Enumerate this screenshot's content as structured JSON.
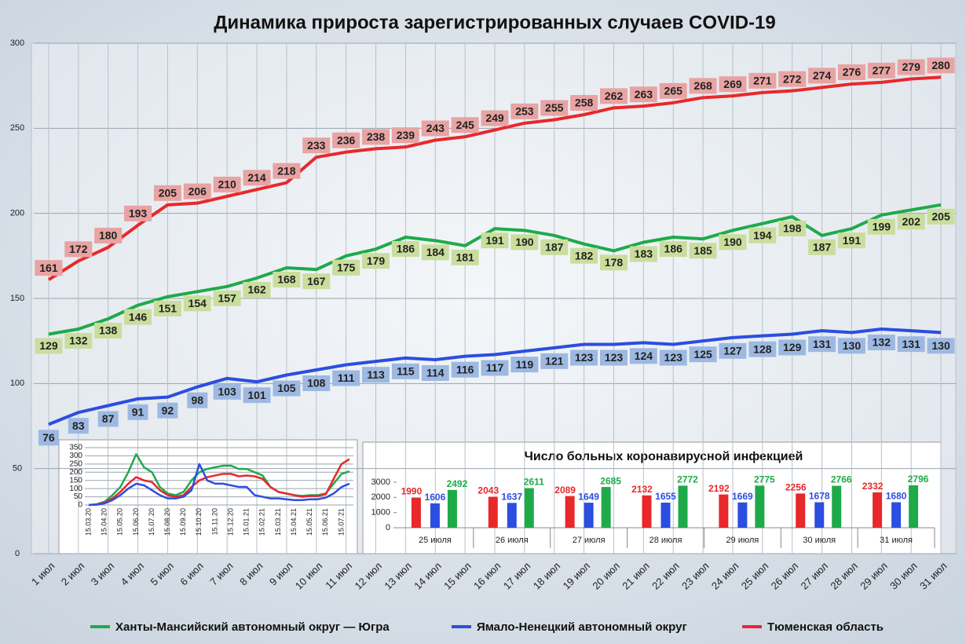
{
  "chart_data": [
    {
      "type": "line",
      "title": "Динамика прироста зарегистрированных случаев COVID-19",
      "categories": [
        "1 июл",
        "2 июл",
        "3 июл",
        "4 июл",
        "5 июл",
        "6 июл",
        "7 июл",
        "8 июл",
        "9 июл",
        "10 июл",
        "11 июл",
        "12 июл",
        "13 июл",
        "14 июл",
        "15 июл",
        "16 июл",
        "17 июл",
        "18 июл",
        "19 июл",
        "20 июл",
        "21 июл",
        "22 июл",
        "23 июл",
        "24 июл",
        "25 июл",
        "26 июл",
        "27 июл",
        "28 июл",
        "29 июл",
        "30 июл",
        "31 июл"
      ],
      "series": [
        {
          "name": "Ханты-Мансийский автономный округ — Югра",
          "color": "#1faa4a",
          "label_color": "#c9de9c",
          "values": [
            129,
            132,
            138,
            146,
            151,
            154,
            157,
            162,
            168,
            167,
            175,
            179,
            186,
            184,
            181,
            191,
            190,
            187,
            182,
            178,
            183,
            186,
            185,
            190,
            194,
            198,
            187,
            191,
            199,
            202,
            205
          ]
        },
        {
          "name": "Ямало-Ненецкий автономный округ",
          "color": "#2b4ee0",
          "label_color": "#9db9e2",
          "values": [
            76,
            83,
            87,
            91,
            92,
            98,
            103,
            101,
            105,
            108,
            111,
            113,
            115,
            114,
            116,
            117,
            119,
            121,
            123,
            123,
            124,
            123,
            125,
            127,
            128,
            129,
            131,
            130,
            132,
            131,
            130
          ]
        },
        {
          "name": "Тюменская область",
          "color": "#e8282a",
          "label_color": "#e8a3a3",
          "values": [
            161,
            172,
            180,
            193,
            205,
            206,
            210,
            214,
            218,
            233,
            236,
            238,
            239,
            243,
            245,
            249,
            253,
            255,
            258,
            262,
            263,
            265,
            268,
            269,
            271,
            272,
            274,
            276,
            277,
            279,
            280
          ]
        }
      ],
      "ylim": [
        0,
        300
      ],
      "yticks": [
        0,
        50,
        100,
        150,
        200,
        250,
        300
      ],
      "grid": true,
      "data_labels": true,
      "legend": "bottom"
    },
    {
      "type": "line",
      "categories": [
        "15.03.20",
        null,
        "15.04.20",
        null,
        "15.05.20",
        null,
        "15.06.20",
        null,
        "15.07.20",
        null,
        "15.08.20",
        null,
        "15.09.20",
        null,
        "15.10.20",
        null,
        "15.11.20",
        null,
        "15.12.20",
        null,
        "15.01.21",
        null,
        "15.02.21",
        null,
        "15.03.21",
        null,
        "15.04.21",
        null,
        "15.05.21",
        null,
        "15.06.21",
        null,
        "15.07.21",
        null
      ],
      "series": [
        {
          "color": "#1faa4a",
          "values": [
            0,
            5,
            20,
            60,
            110,
            200,
            310,
            230,
            200,
            110,
            70,
            60,
            80,
            150,
            200,
            220,
            230,
            240,
            240,
            220,
            220,
            200,
            180,
            110,
            80,
            70,
            60,
            55,
            60,
            60,
            70,
            130,
            190,
            205
          ]
        },
        {
          "color": "#e8282a",
          "values": [
            0,
            3,
            15,
            40,
            80,
            130,
            170,
            150,
            140,
            90,
            60,
            50,
            60,
            110,
            150,
            170,
            180,
            190,
            190,
            175,
            180,
            175,
            160,
            110,
            80,
            70,
            60,
            50,
            55,
            55,
            65,
            160,
            250,
            280
          ]
        },
        {
          "color": "#2b4ee0",
          "values": [
            0,
            2,
            10,
            30,
            60,
            100,
            130,
            120,
            90,
            60,
            40,
            40,
            50,
            90,
            250,
            150,
            130,
            130,
            120,
            110,
            110,
            60,
            50,
            40,
            40,
            35,
            30,
            30,
            35,
            35,
            45,
            70,
            110,
            130
          ]
        }
      ],
      "ylim": [
        0,
        350
      ],
      "yticks": [
        0,
        50,
        100,
        150,
        200,
        250,
        300,
        350
      ],
      "grid": true
    },
    {
      "type": "bar",
      "title": "Число больных коронавирусной инфекцией",
      "categories": [
        "25 июля",
        "26 июля",
        "27 июля",
        "28 июля",
        "29 июля",
        "30 июля",
        "31 июля"
      ],
      "series": [
        {
          "color": "#e8282a",
          "values": [
            1990,
            2043,
            2089,
            2132,
            2192,
            2256,
            2332
          ]
        },
        {
          "color": "#2b4ee0",
          "values": [
            1606,
            1637,
            1649,
            1655,
            1669,
            1678,
            1680
          ]
        },
        {
          "color": "#1faa4a",
          "values": [
            2492,
            2611,
            2685,
            2772,
            2775,
            2766,
            2796
          ]
        }
      ],
      "ylim": [
        0,
        3000
      ],
      "yticks": [
        0,
        1000,
        2000,
        3000
      ],
      "grid": false,
      "data_labels": true
    }
  ]
}
